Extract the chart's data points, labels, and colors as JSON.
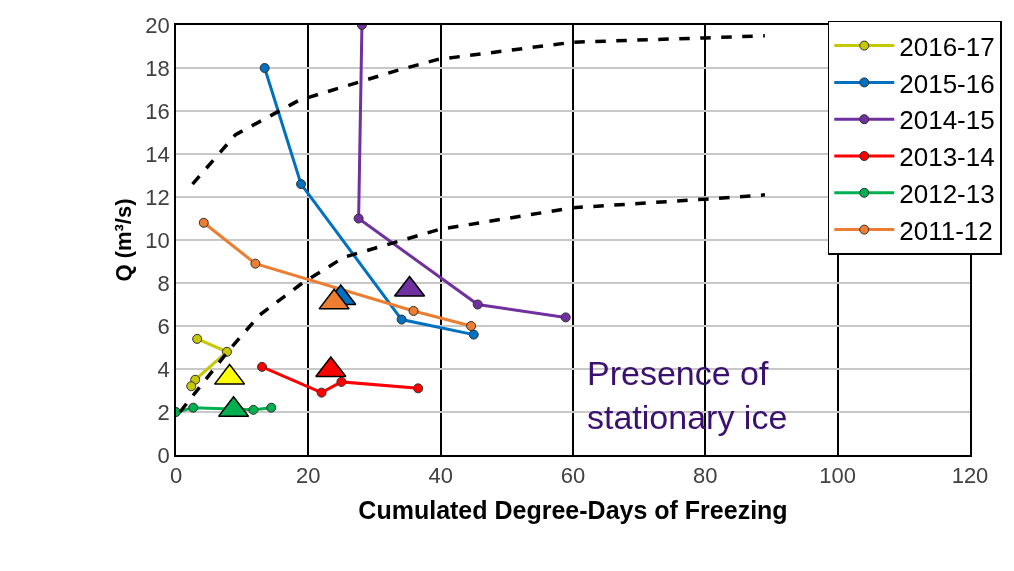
{
  "chart_data": {
    "type": "line",
    "xlabel": "Cumulated Degree-Days of Freezing",
    "ylabel": "Q (m³/s)",
    "xlim": [
      0,
      120
    ],
    "xticks": [
      0,
      20,
      40,
      60,
      80,
      100,
      120
    ],
    "ylim": [
      0,
      20
    ],
    "yticks": [
      0,
      2,
      4,
      6,
      8,
      10,
      12,
      14,
      16,
      18,
      20
    ],
    "grid": true,
    "legend": "top right",
    "marker": "circle",
    "line_style": "solid",
    "annotations": [
      "Presence of stationary ice"
    ],
    "series": [
      {
        "name": "2016-17",
        "color": "#c8c800",
        "x": [
          3.2,
          7.7,
          2.9,
          2.3
        ],
        "values": [
          5.4,
          4.8,
          3.5,
          3.2
        ]
      },
      {
        "name": "2015-16",
        "color": "#0070c0",
        "x": [
          13.4,
          18.9,
          34.1,
          45.0
        ],
        "values": [
          18.0,
          12.6,
          6.3,
          5.6
        ]
      },
      {
        "name": "2014-15",
        "color": "#7030a0",
        "x": [
          28.1,
          27.6,
          45.6,
          58.9
        ],
        "values": [
          20,
          11.0,
          7.0,
          6.4
        ]
      },
      {
        "name": "2013-14",
        "color": "#ff0000",
        "x": [
          13.0,
          22.0,
          25.0,
          36.6
        ],
        "values": [
          4.1,
          2.9,
          3.4,
          3.1
        ]
      },
      {
        "name": "2012-13",
        "color": "#00b050",
        "x": [
          0,
          2.6,
          11.7,
          14.4
        ],
        "values": [
          2.0,
          2.2,
          2.1,
          2.2
        ]
      },
      {
        "name": "2011-12",
        "color": "#ed7d31",
        "x": [
          4.2,
          12.0,
          35.9,
          44.6
        ],
        "values": [
          10.8,
          8.9,
          6.7,
          6.0
        ]
      },
      {
        "type": "line",
        "color": "#000000",
        "marker": "none",
        "line_style": "dashed",
        "x": [
          2.5,
          9,
          18.6,
          33.6,
          39.6,
          60,
          80,
          89
        ],
        "values": [
          12.6,
          14.9,
          16.5,
          17.9,
          18.4,
          19.2,
          19.4,
          19.5
        ]
      },
      {
        "type": "line",
        "color": "#000000",
        "marker": "none",
        "line_style": "dashed",
        "x": [
          0.6,
          7.8,
          12.6,
          19.1,
          25.4,
          39.9,
          60,
          80,
          89
        ],
        "values": [
          2.0,
          4.8,
          6.5,
          8.0,
          9.2,
          10.5,
          11.5,
          11.9,
          12.1
        ]
      },
      {
        "type": "scatter",
        "marker": "triangle",
        "colors": [
          "#ffff00",
          "#0070c0",
          "#7030a0",
          "#ff0000",
          "#00b050",
          "#ed7d31"
        ],
        "x": [
          8.1,
          24.9,
          35.3,
          23.4,
          8.7,
          23.9
        ],
        "values": [
          3.6,
          7.3,
          7.7,
          3.95,
          2.1,
          7.1
        ]
      }
    ]
  }
}
